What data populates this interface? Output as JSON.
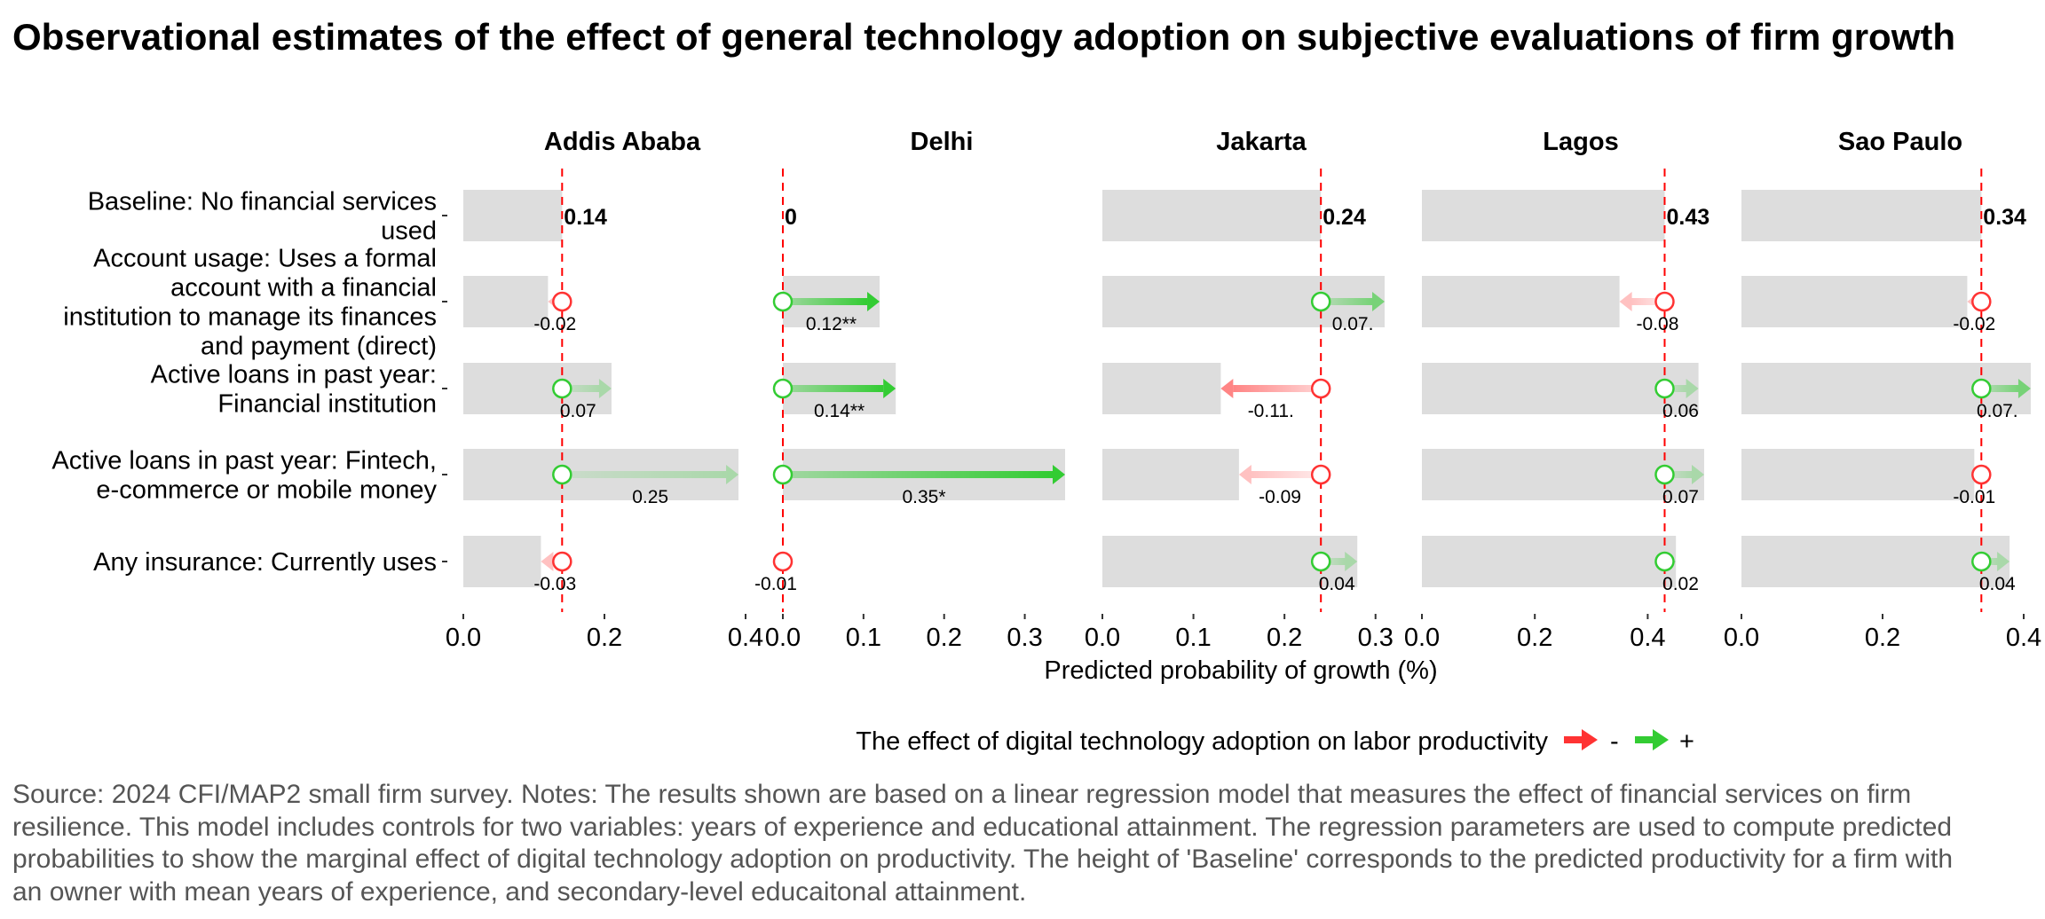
{
  "title": "Observational estimates of the effect of general technology adoption on subjective evaluations of firm growth",
  "chart_data": {
    "type": "arrow-range",
    "xlabel": "Predicted probability of growth (%)",
    "row_labels": [
      [
        "Baseline: No financial services",
        "used"
      ],
      [
        "Account usage: Uses a formal",
        "account with a financial",
        "institution to manage its finances",
        "and payment (direct)"
      ],
      [
        "Active loans in past year:",
        "Financial institution"
      ],
      [
        "Active loans in past year: Fintech,",
        "e-commerce or mobile money"
      ],
      [
        "Any insurance: Currently uses"
      ]
    ],
    "panels": [
      {
        "name": "Addis Ababa",
        "baseline": 0.14,
        "baseline_label": "0.14",
        "xlim": [
          0,
          0.4
        ],
        "ticks": [
          0.0,
          0.2,
          0.4
        ],
        "tick_labels": [
          "0.0",
          "0.2",
          "0.4"
        ],
        "effects": [
          {
            "row": 1,
            "value": -0.02,
            "label": "-0.02",
            "strength": 0.3
          },
          {
            "row": 2,
            "value": 0.07,
            "label": "0.07",
            "strength": 0.3
          },
          {
            "row": 3,
            "value": 0.25,
            "label": "0.25",
            "strength": 0.3
          },
          {
            "row": 4,
            "value": -0.03,
            "label": "-0.03",
            "strength": 0.3
          }
        ]
      },
      {
        "name": "Delhi",
        "baseline": 0.0,
        "baseline_label": "0",
        "xlim": [
          0,
          0.35
        ],
        "ticks": [
          0.0,
          0.1,
          0.2,
          0.3
        ],
        "tick_labels": [
          "0.0",
          "0.1",
          "0.2",
          "0.3"
        ],
        "effects": [
          {
            "row": 1,
            "value": 0.12,
            "label": "0.12**",
            "strength": 1
          },
          {
            "row": 2,
            "value": 0.14,
            "label": "0.14**",
            "strength": 1
          },
          {
            "row": 3,
            "value": 0.35,
            "label": "0.35*",
            "strength": 1
          },
          {
            "row": 4,
            "value": -0.01,
            "label": "-0.01",
            "strength": 0.3
          }
        ]
      },
      {
        "name": "Jakarta",
        "baseline": 0.24,
        "baseline_label": "0.24",
        "xlim": [
          0,
          0.31
        ],
        "ticks": [
          0.0,
          0.1,
          0.2,
          0.3
        ],
        "tick_labels": [
          "0.0",
          "0.1",
          "0.2",
          "0.3"
        ],
        "effects": [
          {
            "row": 1,
            "value": 0.07,
            "label": "0.07.",
            "strength": 0.6
          },
          {
            "row": 2,
            "value": -0.11,
            "label": "-0.11.",
            "strength": 0.6
          },
          {
            "row": 3,
            "value": -0.09,
            "label": "-0.09",
            "strength": 0.3
          },
          {
            "row": 4,
            "value": 0.04,
            "label": "0.04",
            "strength": 0.3
          }
        ]
      },
      {
        "name": "Lagos",
        "baseline": 0.43,
        "baseline_label": "0.43",
        "xlim": [
          0,
          0.5
        ],
        "ticks": [
          0.0,
          0.2,
          0.4
        ],
        "tick_labels": [
          "0.0",
          "0.2",
          "0.4"
        ],
        "effects": [
          {
            "row": 1,
            "value": -0.08,
            "label": "-0.08",
            "strength": 0.3
          },
          {
            "row": 2,
            "value": 0.06,
            "label": "0.06",
            "strength": 0.3
          },
          {
            "row": 3,
            "value": 0.07,
            "label": "0.07",
            "strength": 0.3
          },
          {
            "row": 4,
            "value": 0.02,
            "label": "0.02",
            "strength": 0.3
          }
        ]
      },
      {
        "name": "Sao Paulo",
        "baseline": 0.34,
        "baseline_label": "0.34",
        "xlim": [
          0,
          0.4
        ],
        "ticks": [
          0.0,
          0.2,
          0.4
        ],
        "tick_labels": [
          "0.0",
          "0.2",
          "0.4"
        ],
        "effects": [
          {
            "row": 1,
            "value": -0.02,
            "label": "-0.02",
            "strength": 0.3
          },
          {
            "row": 2,
            "value": 0.07,
            "label": "0.07.",
            "strength": 0.6
          },
          {
            "row": 3,
            "value": -0.01,
            "label": "-0.01",
            "strength": 0.3
          },
          {
            "row": 4,
            "value": 0.04,
            "label": "0.04",
            "strength": 0.3
          }
        ]
      }
    ],
    "legend": {
      "title": "The effect of digital technology adoption on labor productivity",
      "negative_label": "-",
      "positive_label": "+",
      "position": "bottom"
    },
    "colors": {
      "positive": "#33cc33",
      "negative": "#ff3333",
      "baseline_line": "#ff0000",
      "range_band": "#dddddd"
    },
    "grid": false
  },
  "source_note": [
    "Source: 2024 CFI/MAP2 small firm survey. Notes: The results shown are based on a linear regression model that measures the effect of financial services on firm",
    "resilience. This model includes controls for two variables: years of experience and educational attainment. The regression parameters are used to compute predicted",
    "probabilities to show the marginal effect of digital technology adoption on productivity. The height of 'Baseline' corresponds to the predicted productivity for a firm with",
    "an owner with mean years of experience, and secondary-level educaitonal attainment."
  ]
}
